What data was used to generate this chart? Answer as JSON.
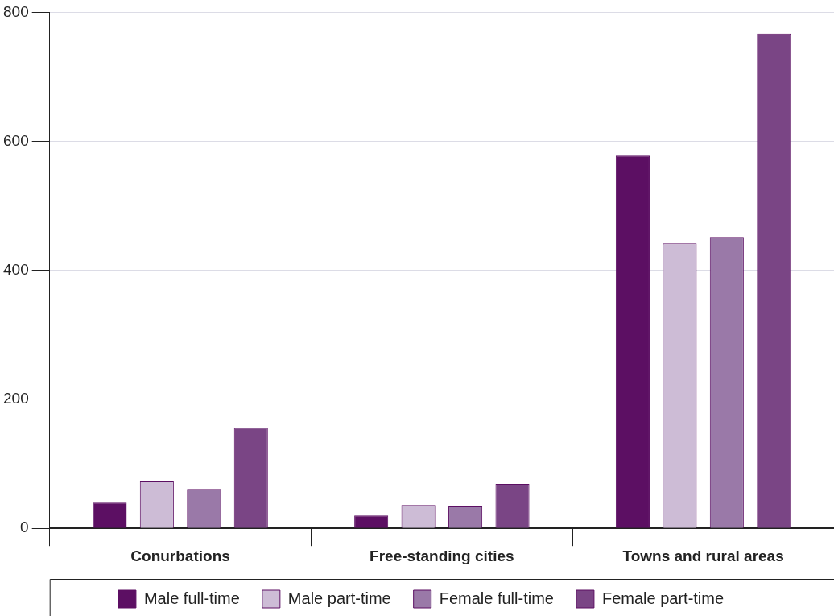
{
  "chart_data": {
    "type": "bar",
    "categories": [
      "Conurbations",
      "Free-standing cities",
      "Towns and rural areas"
    ],
    "series": [
      {
        "name": "Male full-time",
        "color": "#5c0f63",
        "values": [
          40,
          20,
          578
        ]
      },
      {
        "name": "Male part-time",
        "color": "#cdbcd6",
        "values": [
          74,
          36,
          442
        ]
      },
      {
        "name": "Female full-time",
        "color": "#9a79a8",
        "values": [
          61,
          34,
          452
        ]
      },
      {
        "name": "Female part-time",
        "color": "#7a4585",
        "values": [
          156,
          69,
          767
        ]
      }
    ],
    "ylim": [
      0,
      800
    ],
    "yticks": [
      0,
      200,
      400,
      600,
      800
    ],
    "grid": "y",
    "legend": "bottom"
  }
}
